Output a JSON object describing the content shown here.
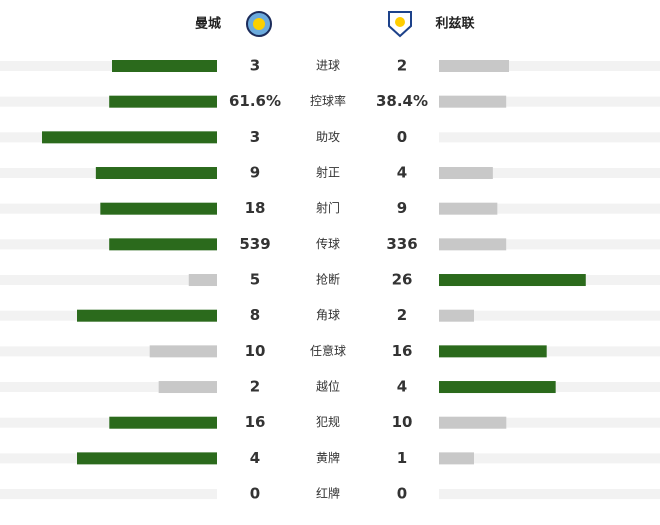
{
  "chart_data": {
    "type": "butterfly",
    "categories": [
      "进球",
      "控球率",
      "助攻",
      "射正",
      "射门",
      "传球",
      "抢断",
      "角球",
      "任意球",
      "越位",
      "犯规",
      "黄牌",
      "红牌"
    ],
    "series": [
      {
        "name": "曼城",
        "values": [
          3,
          61.6,
          3,
          9,
          18,
          539,
          5,
          8,
          10,
          2,
          16,
          4,
          0
        ],
        "value_labels": [
          "3",
          "61.6%",
          "3",
          "9",
          "18",
          "539",
          "5",
          "8",
          "10",
          "2",
          "16",
          "4",
          "0"
        ]
      },
      {
        "name": "利兹联",
        "values": [
          2,
          38.4,
          0,
          4,
          9,
          336,
          26,
          2,
          16,
          4,
          10,
          1,
          0
        ],
        "value_labels": [
          "2",
          "38.4%",
          "0",
          "4",
          "9",
          "336",
          "26",
          "2",
          "16",
          "4",
          "10",
          "1",
          "0"
        ]
      }
    ],
    "leading_color": "#2b6a1c",
    "trailing_color": "#c8c8c8"
  }
}
